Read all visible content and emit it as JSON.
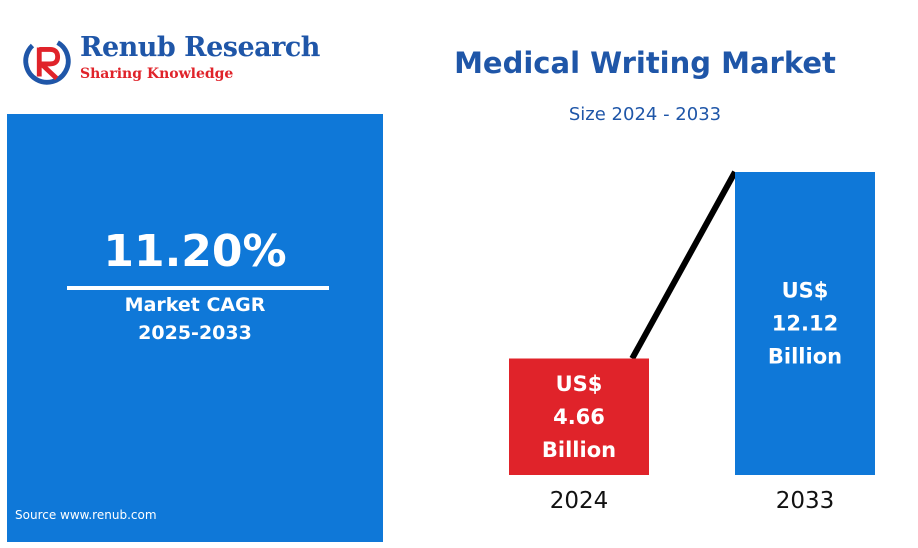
{
  "logo": {
    "brand": "Renub Research",
    "tagline": "Sharing Knowledge"
  },
  "cagr": {
    "value": "11.20%",
    "label": "Market CAGR",
    "period": "2025-2033"
  },
  "source": "Source  www.renub.com",
  "colors": {
    "primary_blue": "#0f78d8",
    "accent_red": "#e0232a",
    "title_blue": "#1f56a8"
  },
  "chart_data": {
    "type": "bar",
    "title": "Medical Writing Market",
    "subtitle": "Size 2024 - 2033",
    "categories": [
      "2024",
      "2033"
    ],
    "values": [
      4.66,
      12.12
    ],
    "unit": "US$ Billion",
    "bar_labels": [
      [
        "US$",
        "4.66",
        "Billion"
      ],
      [
        "US$",
        "12.12",
        "Billion"
      ]
    ],
    "bar_colors": [
      "#e0232a",
      "#0f78d8"
    ],
    "trend_line": true,
    "grid": false,
    "legend": "none"
  }
}
